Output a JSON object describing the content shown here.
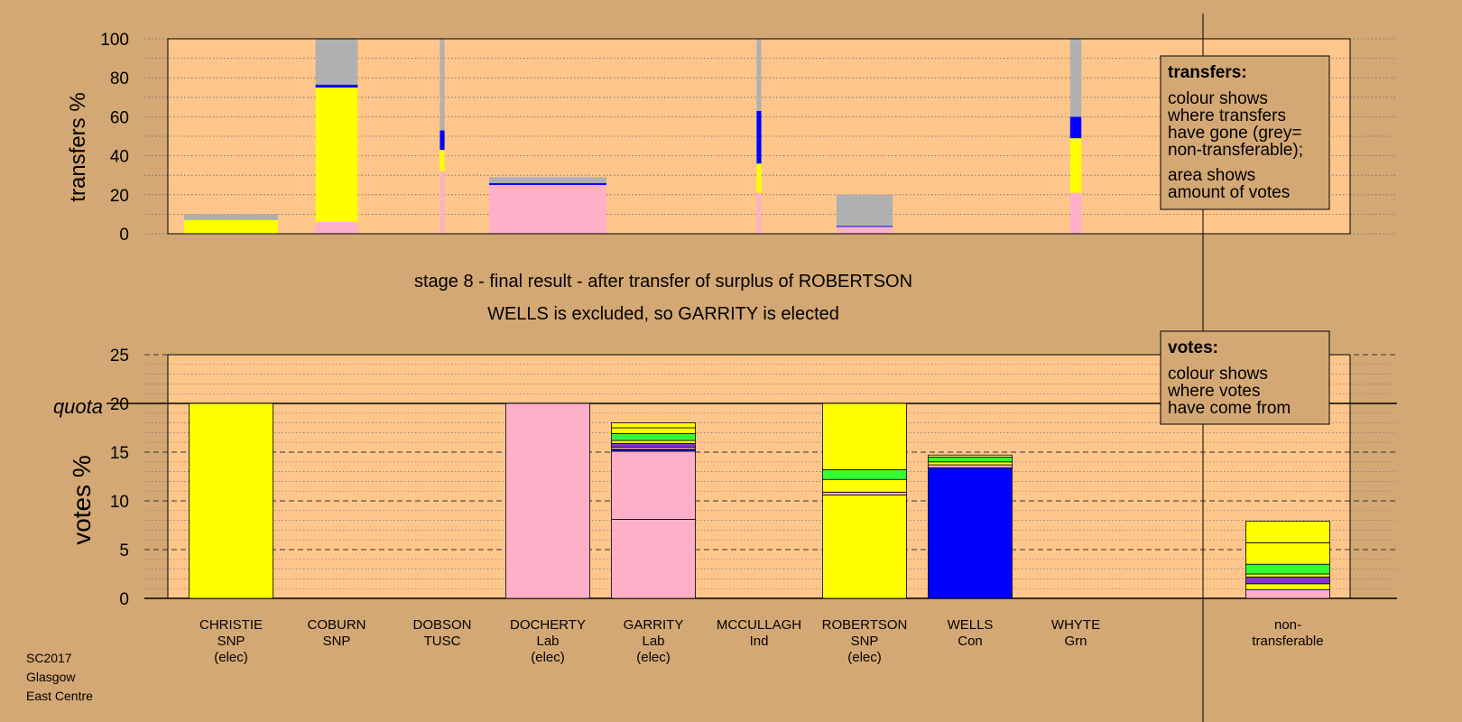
{
  "colors": {
    "background": "#d4a874",
    "plot_bg": "#ffc68c",
    "pink": "#ffb0c8",
    "yellow": "#ffff00",
    "blue": "#0000ff",
    "grey": "#b0b0b0",
    "green": "#33ff33",
    "purple": "#8833cc",
    "light_yellow": "#ffff88"
  },
  "chart_data": [
    {
      "type": "bar",
      "stacked": true,
      "ylabel": "transfers %",
      "ylim": [
        0,
        100
      ],
      "yticks": [
        0,
        20,
        40,
        60,
        80,
        100
      ],
      "legend": {
        "title": "transfers:",
        "lines1": [
          "colour shows",
          "where transfers",
          "have gone (grey=",
          "non-transferable);"
        ],
        "lines2": [
          "area shows",
          "amount of votes"
        ]
      },
      "bars": [
        {
          "candidate": "CHRISTIE",
          "width": 1.0,
          "segments": [
            [
              "yellow",
              7
            ],
            [
              "grey",
              3
            ]
          ]
        },
        {
          "candidate": "COBURN",
          "width": 0.45,
          "segments": [
            [
              "pink",
              6
            ],
            [
              "yellow",
              69
            ],
            [
              "blue",
              1.5
            ],
            [
              "grey",
              23.5
            ]
          ]
        },
        {
          "candidate": "DOBSON",
          "width": 0.05,
          "segments": [
            [
              "pink",
              32
            ],
            [
              "yellow",
              11
            ],
            [
              "blue",
              10
            ],
            [
              "grey",
              47
            ]
          ]
        },
        {
          "candidate": "DOCHERTY",
          "width": 1.25,
          "segments": [
            [
              "pink",
              25
            ],
            [
              "blue",
              1
            ],
            [
              "grey",
              3
            ]
          ]
        },
        {
          "candidate": "MCCULLAGH",
          "width": 0.05,
          "segments": [
            [
              "pink",
              21
            ],
            [
              "yellow",
              15
            ],
            [
              "blue",
              27
            ],
            [
              "grey",
              37
            ]
          ]
        },
        {
          "candidate": "ROBERTSON",
          "width": 0.6,
          "segments": [
            [
              "pink",
              3.5
            ],
            [
              "blue",
              0.5
            ],
            [
              "grey",
              16
            ]
          ]
        },
        {
          "candidate": "WHYTE",
          "width": 0.12,
          "segments": [
            [
              "pink",
              21
            ],
            [
              "yellow",
              28
            ],
            [
              "blue",
              11
            ],
            [
              "grey",
              40
            ]
          ]
        }
      ]
    },
    {
      "type": "bar",
      "stacked": true,
      "title": "stage 8 - final result - after transfer of surplus of ROBERTSON",
      "subtitle": "WELLS is excluded, so GARRITY is elected",
      "ylabel": "votes %",
      "ylim": [
        0,
        25
      ],
      "yticks": [
        0,
        5,
        10,
        15,
        20,
        25
      ],
      "quota": 20,
      "quota_label": "quota",
      "legend": {
        "title": "votes:",
        "lines": [
          "colour shows",
          "where votes",
          "have come from"
        ]
      },
      "candidates": [
        {
          "name": "CHRISTIE",
          "party": "SNP",
          "status": "(elec)"
        },
        {
          "name": "COBURN",
          "party": "SNP",
          "status": ""
        },
        {
          "name": "DOBSON",
          "party": "TUSC",
          "status": ""
        },
        {
          "name": "DOCHERTY",
          "party": "Lab",
          "status": "(elec)"
        },
        {
          "name": "GARRITY",
          "party": "Lab",
          "status": "(elec)"
        },
        {
          "name": "MCCULLAGH",
          "party": "Ind",
          "status": ""
        },
        {
          "name": "ROBERTSON",
          "party": "SNP",
          "status": "(elec)"
        },
        {
          "name": "WELLS",
          "party": "Con",
          "status": ""
        },
        {
          "name": "WHYTE",
          "party": "Grn",
          "status": ""
        }
      ],
      "nontransferable": {
        "line1": "non-",
        "line2": "transferable"
      },
      "bars": [
        {
          "candidate": "CHRISTIE",
          "segments": [
            [
              "yellow",
              20
            ]
          ]
        },
        {
          "candidate": "COBURN",
          "segments": []
        },
        {
          "candidate": "DOBSON",
          "segments": []
        },
        {
          "candidate": "DOCHERTY",
          "segments": [
            [
              "pink",
              20
            ]
          ]
        },
        {
          "candidate": "GARRITY",
          "segments": [
            [
              "pink",
              8.1
            ],
            [
              "pink",
              7.0
            ],
            [
              "blue",
              0.2
            ],
            [
              "pink",
              0.2
            ],
            [
              "purple",
              0.4
            ],
            [
              "yellow",
              0.3
            ],
            [
              "green",
              0.7
            ],
            [
              "yellow",
              0.6
            ],
            [
              "yellow",
              0.5
            ]
          ]
        },
        {
          "candidate": "MCCULLAGH",
          "segments": []
        },
        {
          "candidate": "ROBERTSON",
          "segments": [
            [
              "yellow",
              10.6
            ],
            [
              "pink",
              0.3
            ],
            [
              "yellow",
              1.3
            ],
            [
              "green",
              1.0
            ],
            [
              "yellow",
              6.8
            ]
          ]
        },
        {
          "candidate": "WELLS",
          "segments": [
            [
              "blue",
              13.4
            ],
            [
              "pink",
              0.3
            ],
            [
              "yellow",
              0.3
            ],
            [
              "green",
              0.5
            ],
            [
              "light_yellow",
              0.2
            ]
          ]
        },
        {
          "candidate": "WHYTE",
          "segments": []
        },
        {
          "candidate": "non-transferable",
          "segments": [
            [
              "pink",
              0.9
            ],
            [
              "yellow",
              0.6
            ],
            [
              "purple",
              0.7
            ],
            [
              "yellow",
              0.3
            ],
            [
              "green",
              1.0
            ],
            [
              "yellow",
              2.2
            ],
            [
              "yellow",
              2.2
            ]
          ]
        }
      ]
    }
  ],
  "footer": {
    "line1": "SC2017",
    "line2": "Glasgow",
    "line3": "East Centre"
  }
}
